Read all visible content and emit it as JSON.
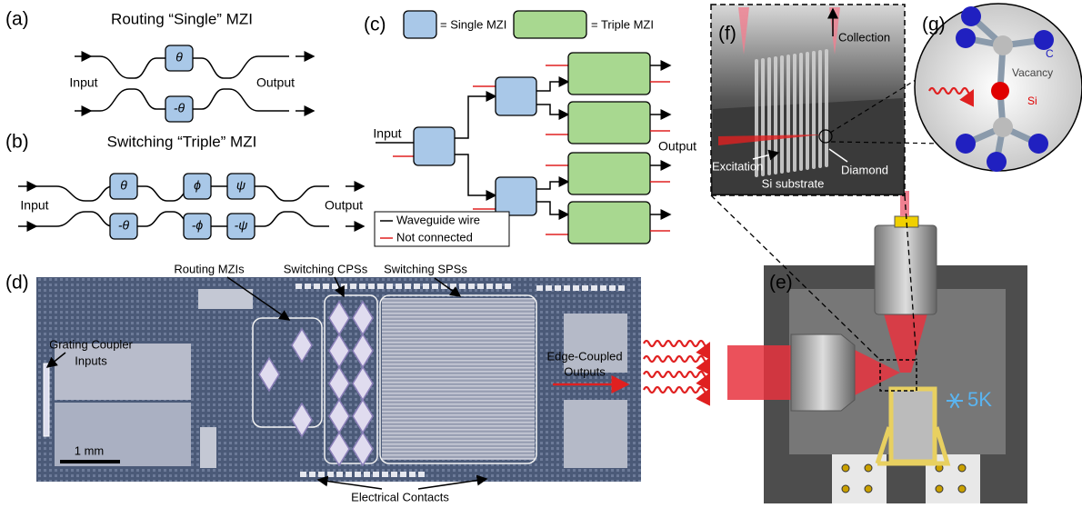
{
  "a": {
    "label": "(a)",
    "title": "Routing “Single” MZI",
    "input": "Input",
    "output": "Output",
    "phases": [
      "θ",
      "-θ"
    ]
  },
  "b": {
    "label": "(b)",
    "title": "Switching “Triple” MZI",
    "input": "Input",
    "output": "Output",
    "phases_top": [
      "θ",
      "ϕ",
      "ψ"
    ],
    "phases_bottom": [
      "-θ",
      "-ϕ",
      "-ψ"
    ]
  },
  "c": {
    "label": "(c)",
    "legend_single": "= Single MZI",
    "legend_triple": "= Triple MZI",
    "input": "Input",
    "output": "Output",
    "key_wire": "Waveguide wire",
    "key_nc": "Not connected"
  },
  "d": {
    "label": "(d)",
    "routing": "Routing MZIs",
    "cps": "Switching CPSs",
    "sps": "Switching SPSs",
    "grating": [
      "Grating Coupler",
      "Inputs"
    ],
    "edge": [
      "Edge-Coupled",
      "Outputs"
    ],
    "scale": "1 mm",
    "contacts": "Electrical Contacts"
  },
  "e": {
    "label": "(e)",
    "temperature": "5K"
  },
  "f": {
    "label": "(f)",
    "collection": "Collection",
    "excitation": "Excitation",
    "diamond": "Diamond",
    "substrate": "Si substrate"
  },
  "g": {
    "label": "(g)",
    "carbon": "C",
    "vacancy": "Vacancy",
    "silicon": "Si"
  }
}
